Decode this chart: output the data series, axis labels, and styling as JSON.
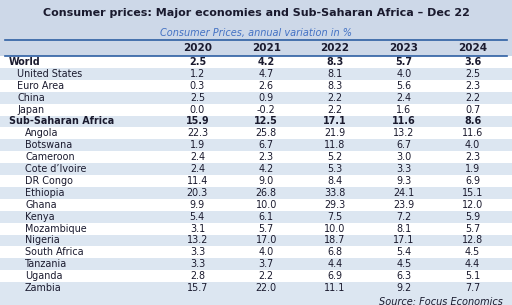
{
  "title": "Consumer prices: Major economies and Sub-Saharan Africa – Dec 22",
  "subtitle": "Consumer Prices, annual variation in %",
  "subtitle_color": "#4472c4",
  "columns": [
    "2020",
    "2021",
    "2022",
    "2023",
    "2024"
  ],
  "rows": [
    {
      "name": "World",
      "indent": 0,
      "bold": true,
      "values": [
        "2.5",
        "4.2",
        "8.3",
        "5.7",
        "3.6"
      ],
      "shaded": false
    },
    {
      "name": "United States",
      "indent": 1,
      "bold": false,
      "values": [
        "1.2",
        "4.7",
        "8.1",
        "4.0",
        "2.5"
      ],
      "shaded": true
    },
    {
      "name": "Euro Area",
      "indent": 1,
      "bold": false,
      "values": [
        "0.3",
        "2.6",
        "8.3",
        "5.6",
        "2.3"
      ],
      "shaded": false
    },
    {
      "name": "China",
      "indent": 1,
      "bold": false,
      "values": [
        "2.5",
        "0.9",
        "2.2",
        "2.4",
        "2.2"
      ],
      "shaded": true
    },
    {
      "name": "Japan",
      "indent": 1,
      "bold": false,
      "values": [
        "0.0",
        "-0.2",
        "2.2",
        "1.6",
        "0.7"
      ],
      "shaded": false
    },
    {
      "name": "Sub-Saharan Africa",
      "indent": 0,
      "bold": true,
      "values": [
        "15.9",
        "12.5",
        "17.1",
        "11.6",
        "8.6"
      ],
      "shaded": true
    },
    {
      "name": "Angola",
      "indent": 2,
      "bold": false,
      "values": [
        "22.3",
        "25.8",
        "21.9",
        "13.2",
        "11.6"
      ],
      "shaded": false
    },
    {
      "name": "Botswana",
      "indent": 2,
      "bold": false,
      "values": [
        "1.9",
        "6.7",
        "11.8",
        "6.7",
        "4.0"
      ],
      "shaded": true
    },
    {
      "name": "Cameroon",
      "indent": 2,
      "bold": false,
      "values": [
        "2.4",
        "2.3",
        "5.2",
        "3.0",
        "2.3"
      ],
      "shaded": false
    },
    {
      "name": "Cote d’Ivoire",
      "indent": 2,
      "bold": false,
      "values": [
        "2.4",
        "4.2",
        "5.3",
        "3.3",
        "1.9"
      ],
      "shaded": true
    },
    {
      "name": "DR Congo",
      "indent": 2,
      "bold": false,
      "values": [
        "11.4",
        "9.0",
        "8.4",
        "9.3",
        "6.9"
      ],
      "shaded": false
    },
    {
      "name": "Ethiopia",
      "indent": 2,
      "bold": false,
      "values": [
        "20.3",
        "26.8",
        "33.8",
        "24.1",
        "15.1"
      ],
      "shaded": true
    },
    {
      "name": "Ghana",
      "indent": 2,
      "bold": false,
      "values": [
        "9.9",
        "10.0",
        "29.3",
        "23.9",
        "12.0"
      ],
      "shaded": false
    },
    {
      "name": "Kenya",
      "indent": 2,
      "bold": false,
      "values": [
        "5.4",
        "6.1",
        "7.5",
        "7.2",
        "5.9"
      ],
      "shaded": true
    },
    {
      "name": "Mozambique",
      "indent": 2,
      "bold": false,
      "values": [
        "3.1",
        "5.7",
        "10.0",
        "8.1",
        "5.7"
      ],
      "shaded": false
    },
    {
      "name": "Nigeria",
      "indent": 2,
      "bold": false,
      "values": [
        "13.2",
        "17.0",
        "18.7",
        "17.1",
        "12.8"
      ],
      "shaded": true
    },
    {
      "name": "South Africa",
      "indent": 2,
      "bold": false,
      "values": [
        "3.3",
        "4.0",
        "6.8",
        "5.4",
        "4.5"
      ],
      "shaded": false
    },
    {
      "name": "Tanzania",
      "indent": 2,
      "bold": false,
      "values": [
        "3.3",
        "3.7",
        "4.4",
        "4.5",
        "4.4"
      ],
      "shaded": true
    },
    {
      "name": "Uganda",
      "indent": 2,
      "bold": false,
      "values": [
        "2.8",
        "2.2",
        "6.9",
        "6.3",
        "5.1"
      ],
      "shaded": false
    },
    {
      "name": "Zambia",
      "indent": 2,
      "bold": false,
      "values": [
        "15.7",
        "22.0",
        "11.1",
        "9.2",
        "7.7"
      ],
      "shaded": true
    }
  ],
  "source_text": "Source: Focus Economics",
  "bg_color": "#cdd8e8",
  "shaded_color": "#dce6f1",
  "white_color": "#ffffff",
  "border_color": "#2e5fa3",
  "text_color": "#1a1a2e",
  "title_bg": "#cdd8e8",
  "footer_bg": "#dce6f1"
}
